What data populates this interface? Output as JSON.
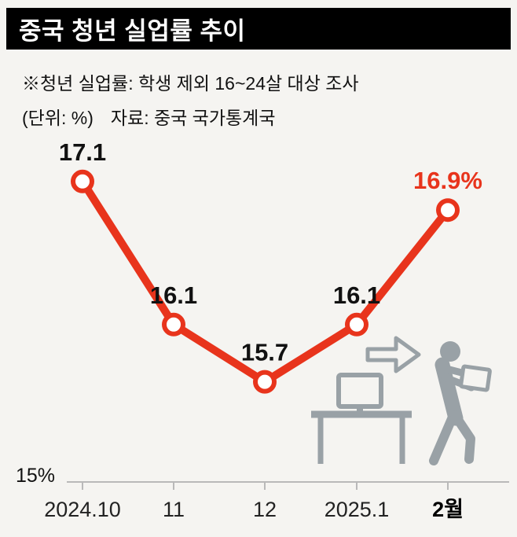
{
  "header": {
    "title": "중국 청년 실업률 추이"
  },
  "notes": {
    "line1": "※청년 실업률: 학생 제외 16~24살 대상 조사",
    "unit": "(단위: %)",
    "source": "자료: 중국 국가통계국"
  },
  "chart_data": {
    "type": "line",
    "title": "중국 청년 실업률 추이",
    "categories": [
      "2024.10",
      "11",
      "12",
      "2025.1",
      "2월"
    ],
    "values": [
      17.1,
      16.1,
      15.7,
      16.1,
      16.9
    ],
    "point_labels": [
      "17.1",
      "16.1",
      "15.7",
      "16.1",
      "16.9%"
    ],
    "unit": "%",
    "baseline_label": "15%",
    "ylim": [
      15,
      17.75
    ],
    "grid": "off",
    "legend": "none",
    "line_color": "#e8341c",
    "marker_fill": "#ffffff",
    "label_color": "#111111",
    "highlight_label_color": "#e8341c",
    "axis_color": "#b9b9b9",
    "highlight_last_category": true
  },
  "illustration": {
    "name": "person-leaving-desk-with-box",
    "color": "#99a1a6"
  }
}
